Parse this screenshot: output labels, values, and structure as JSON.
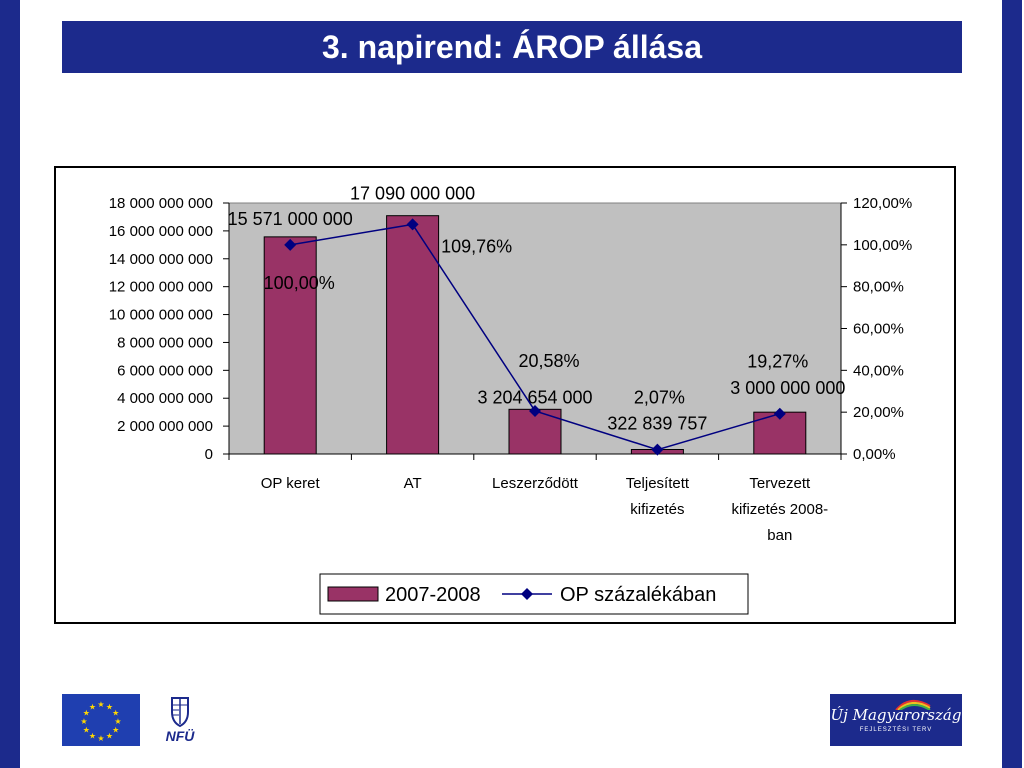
{
  "slide": {
    "title": "3. napirend: ÁROP állása"
  },
  "colors": {
    "frame_blue": "#1c2a8c",
    "plot_bg": "#c0c0c0",
    "bar_fill": "#993366",
    "line": "#000080"
  },
  "footer": {
    "nfu_label": "NFÜ",
    "um_logo_text": "Új Magyarország",
    "um_logo_sub": "FEJLESZTÉSI TERV",
    "eu_flag_icon": "eu-flag-icon",
    "coat_of_arms_icon": "coat-of-arms-icon"
  },
  "chart_data": {
    "type": "bar",
    "categories": [
      [
        "OP keret"
      ],
      [
        "AT"
      ],
      [
        "Leszerződött"
      ],
      [
        "Teljesített",
        "kifizetés"
      ],
      [
        "Tervezett",
        "kifizetés 2008-",
        "ban"
      ]
    ],
    "series": [
      {
        "name": "2007-2008",
        "type": "bar",
        "axis": "left",
        "values": [
          15571000000,
          17090000000,
          3204654000,
          322839757,
          3000000000
        ],
        "labels": [
          "15 571 000 000",
          "17 090 000 000",
          "3 204 654 000",
          "322 839 757",
          "3 000 000 000"
        ]
      },
      {
        "name": "OP százalékában",
        "type": "line",
        "axis": "right",
        "values": [
          100.0,
          109.76,
          20.58,
          2.07,
          19.27
        ],
        "labels": [
          "100,00%",
          "109,76%",
          "20,58%",
          "2,07%",
          "19,27%"
        ]
      }
    ],
    "y_left": {
      "min": 0,
      "max": 18000000000,
      "ticks": [
        "0",
        "2 000 000 000",
        "4 000 000 000",
        "6 000 000 000",
        "8 000 000 000",
        "10 000 000 000",
        "12 000 000 000",
        "14 000 000 000",
        "16 000 000 000",
        "18 000 000 000"
      ]
    },
    "y_right": {
      "min": 0,
      "max": 120,
      "ticks": [
        "0,00%",
        "20,00%",
        "40,00%",
        "60,00%",
        "80,00%",
        "100,00%",
        "120,00%"
      ]
    },
    "grid": false,
    "legend": "bottom"
  }
}
